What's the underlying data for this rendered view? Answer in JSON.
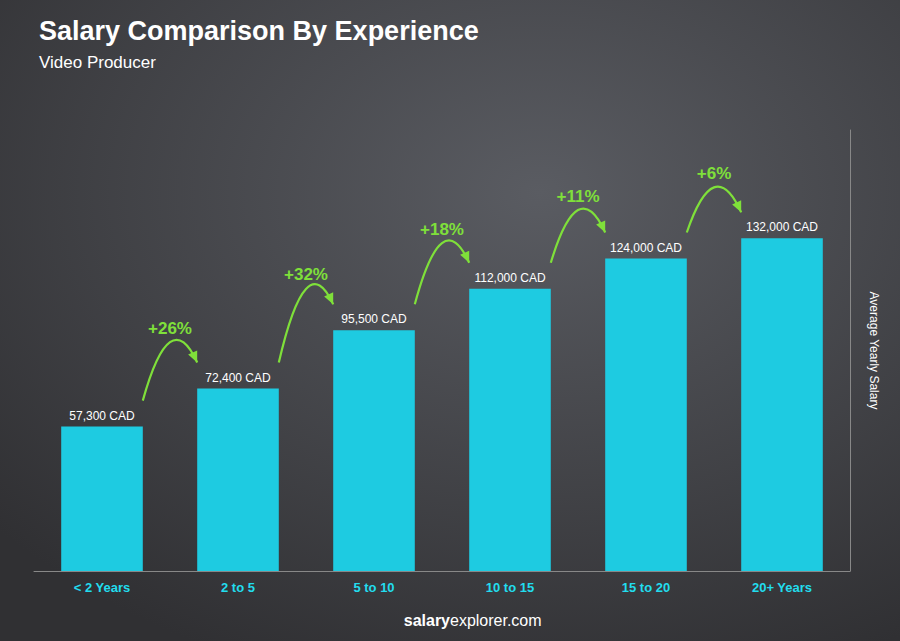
{
  "chart_data": {
    "type": "bar",
    "title": "Salary Comparison By Experience",
    "subtitle": "Video Producer",
    "ylabel": "Average Yearly Salary",
    "categories": [
      "< 2 Years",
      "2 to 5",
      "5 to 10",
      "10 to 15",
      "15 to 20",
      "20+ Years"
    ],
    "values": [
      57300,
      72400,
      95500,
      112000,
      124000,
      132000
    ],
    "value_labels": [
      "57,300 CAD",
      "72,400 CAD",
      "95,500 CAD",
      "112,000 CAD",
      "124,000 CAD",
      "132,000 CAD"
    ],
    "data_labels": true,
    "color": "#1ecbe1",
    "ylim": [
      0,
      175000
    ],
    "grid": false,
    "tick_labels": "x",
    "annotations": [
      "+26%",
      "+32%",
      "+18%",
      "+11%",
      "+6%"
    ],
    "watermark": [
      "salary",
      "explorer.com"
    ]
  }
}
